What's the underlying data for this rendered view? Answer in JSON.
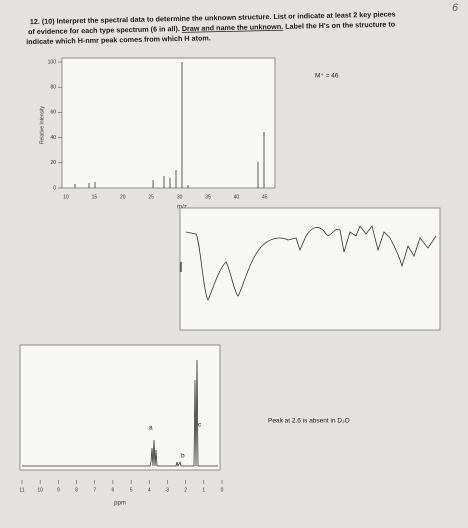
{
  "score": "6",
  "question": {
    "lines": [
      "12. (10) Interpret the spectral data to determine the unknown structure. List or indicate at least 2 key pieces",
      "of evidence for each type spectrum (6 in all).",
      "Draw and name the unknown.",
      "Label the H's on the structure to",
      "indicate which H-nmr peak comes from which H atom."
    ]
  },
  "mass_spectrum": {
    "y_axis_label": "Relative Intensity",
    "yticks": [
      100,
      80,
      60,
      40,
      20,
      0
    ],
    "xticks": [
      10,
      15,
      20,
      25,
      30,
      35,
      40,
      45
    ],
    "x_axis_label": "m/z",
    "annotation": "M⁺ = 46"
  },
  "nmr": {
    "peak_labels": [
      "a",
      "b",
      "c"
    ],
    "xticks": [
      11,
      10,
      9,
      8,
      7,
      6,
      5,
      4,
      3,
      2,
      1,
      0
    ],
    "x_axis_label": "ppm",
    "annotation": "Peak at 2.6 is absent in D₂O"
  }
}
